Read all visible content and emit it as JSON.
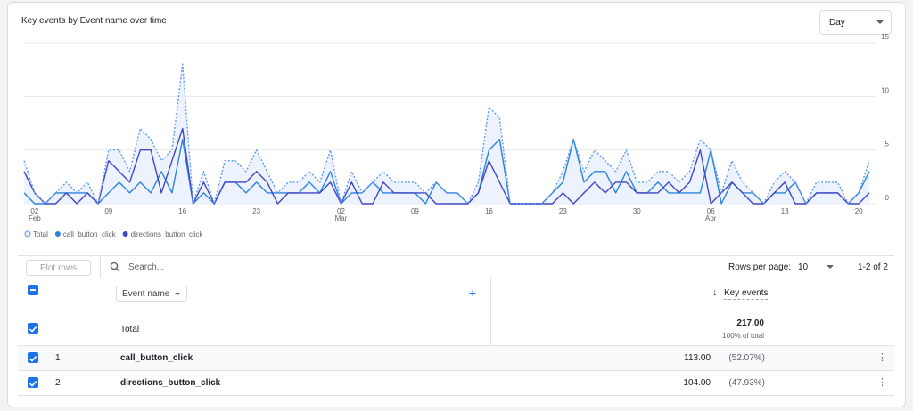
{
  "header": {
    "title": "Key events by Event name over time",
    "granularity": "Day"
  },
  "chart_data": {
    "type": "line",
    "categories": [
      null,
      "02",
      null,
      null,
      null,
      null,
      null,
      null,
      "09",
      null,
      null,
      null,
      null,
      null,
      null,
      "16",
      null,
      null,
      null,
      null,
      null,
      null,
      "23",
      null,
      null,
      null,
      null,
      null,
      null,
      null,
      "02",
      null,
      null,
      null,
      null,
      null,
      null,
      "09",
      null,
      null,
      null,
      null,
      null,
      null,
      "16",
      null,
      null,
      null,
      null,
      null,
      null,
      "23",
      null,
      null,
      null,
      null,
      null,
      null,
      "30",
      null,
      null,
      null,
      null,
      null,
      null,
      "06",
      null,
      null,
      null,
      null,
      null,
      null,
      "13",
      null,
      null,
      null,
      null,
      null,
      null,
      "20",
      null
    ],
    "category_months": [
      null,
      "Feb",
      null,
      null,
      null,
      null,
      null,
      null,
      null,
      null,
      null,
      null,
      null,
      null,
      null,
      null,
      null,
      null,
      null,
      null,
      null,
      null,
      null,
      null,
      null,
      null,
      null,
      null,
      null,
      null,
      "Mar",
      null,
      null,
      null,
      null,
      null,
      null,
      null,
      null,
      null,
      null,
      null,
      null,
      null,
      null,
      null,
      null,
      null,
      null,
      null,
      null,
      null,
      null,
      null,
      null,
      null,
      null,
      null,
      null,
      null,
      null,
      null,
      null,
      null,
      null,
      "Apr",
      null,
      null,
      null,
      null,
      null,
      null,
      null,
      null,
      null,
      null,
      null,
      null,
      null,
      null,
      null
    ],
    "series": [
      {
        "name": "Total",
        "color": "#5e97f6",
        "fill": "#e8f0fe",
        "dash": true,
        "values": [
          4,
          1,
          0,
          1,
          2,
          1,
          2,
          0,
          5,
          5,
          3,
          7,
          6,
          4,
          5,
          13,
          0,
          3,
          0,
          4,
          4,
          3,
          5,
          3,
          1,
          2,
          2,
          3,
          2,
          5,
          0,
          3,
          1,
          2,
          3,
          2,
          2,
          2,
          1,
          2,
          1,
          1,
          0,
          2,
          9,
          8,
          0,
          0,
          0,
          0,
          1,
          3,
          6,
          3,
          5,
          4,
          3,
          5,
          2,
          2,
          3,
          3,
          2,
          3,
          6,
          5,
          1,
          4,
          2,
          1,
          0,
          2,
          3,
          2,
          0,
          2,
          2,
          2,
          0,
          1,
          4
        ]
      },
      {
        "name": "call_button_click",
        "color": "#2b84d9",
        "values": [
          1,
          0,
          0,
          1,
          1,
          1,
          1,
          0,
          1,
          2,
          1,
          2,
          1,
          3,
          1,
          6,
          0,
          1,
          0,
          2,
          2,
          1,
          2,
          1,
          1,
          1,
          1,
          2,
          1,
          3,
          0,
          1,
          1,
          2,
          1,
          1,
          1,
          1,
          0,
          2,
          1,
          1,
          0,
          1,
          5,
          6,
          0,
          0,
          0,
          0,
          1,
          2,
          6,
          2,
          3,
          3,
          1,
          3,
          1,
          1,
          2,
          1,
          1,
          1,
          1,
          5,
          0,
          2,
          1,
          1,
          0,
          1,
          1,
          2,
          0,
          1,
          1,
          1,
          0,
          1,
          3
        ]
      },
      {
        "name": "directions_button_click",
        "color": "#4346c4",
        "values": [
          3,
          1,
          0,
          0,
          1,
          0,
          1,
          0,
          4,
          3,
          2,
          5,
          5,
          1,
          4,
          7,
          0,
          2,
          0,
          2,
          2,
          2,
          3,
          2,
          0,
          1,
          1,
          1,
          1,
          2,
          0,
          2,
          0,
          0,
          2,
          1,
          1,
          1,
          1,
          0,
          0,
          0,
          0,
          1,
          4,
          2,
          0,
          0,
          0,
          0,
          0,
          1,
          0,
          1,
          2,
          1,
          2,
          2,
          1,
          1,
          1,
          2,
          1,
          2,
          5,
          0,
          1,
          2,
          1,
          0,
          0,
          1,
          2,
          0,
          0,
          1,
          1,
          1,
          0,
          0,
          1
        ]
      }
    ],
    "ylim": [
      0,
      15
    ],
    "yticks": [
      0,
      5,
      10,
      15
    ],
    "grid": true
  },
  "table": {
    "plot_rows": "Plot rows",
    "search_placeholder": "Search...",
    "rows_per_page_label": "Rows per page:",
    "rows_per_page": "10",
    "pagination": "1-2 of 2",
    "dimension": "Event name",
    "metric": "Key events",
    "total": {
      "label": "Total",
      "value": "217.00",
      "share": "100% of total"
    },
    "rows": [
      {
        "index": "1",
        "name": "call_button_click",
        "value": "113.00",
        "share": "(52.07%)"
      },
      {
        "index": "2",
        "name": "directions_button_click",
        "value": "104.00",
        "share": "(47.93%)"
      }
    ]
  }
}
